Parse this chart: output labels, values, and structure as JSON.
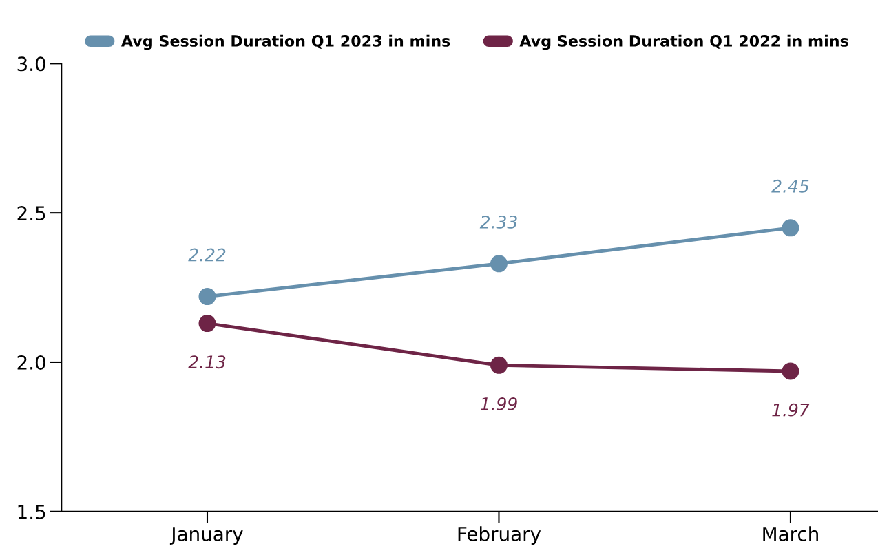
{
  "chart_data": {
    "type": "line",
    "categories": [
      "January",
      "February",
      "March"
    ],
    "series": [
      {
        "name": "Avg Session Duration Q1 2023 in mins",
        "color": "#6690ad",
        "values": [
          2.22,
          2.33,
          2.45
        ]
      },
      {
        "name": "Avg Session Duration Q1 2022 in mins",
        "color": "#6e2446",
        "values": [
          2.13,
          1.99,
          1.97
        ]
      }
    ],
    "ylim": [
      1.5,
      3.0
    ],
    "yticks": [
      {
        "value": 1.5,
        "label": "1.5"
      },
      {
        "value": 2.0,
        "label": "2.0"
      },
      {
        "value": 2.5,
        "label": "2.5"
      },
      {
        "value": 3.0,
        "label": "3.0"
      }
    ],
    "data_labels": true,
    "legend": "top",
    "grid": false,
    "marker": "circle",
    "line_style": "solid"
  }
}
